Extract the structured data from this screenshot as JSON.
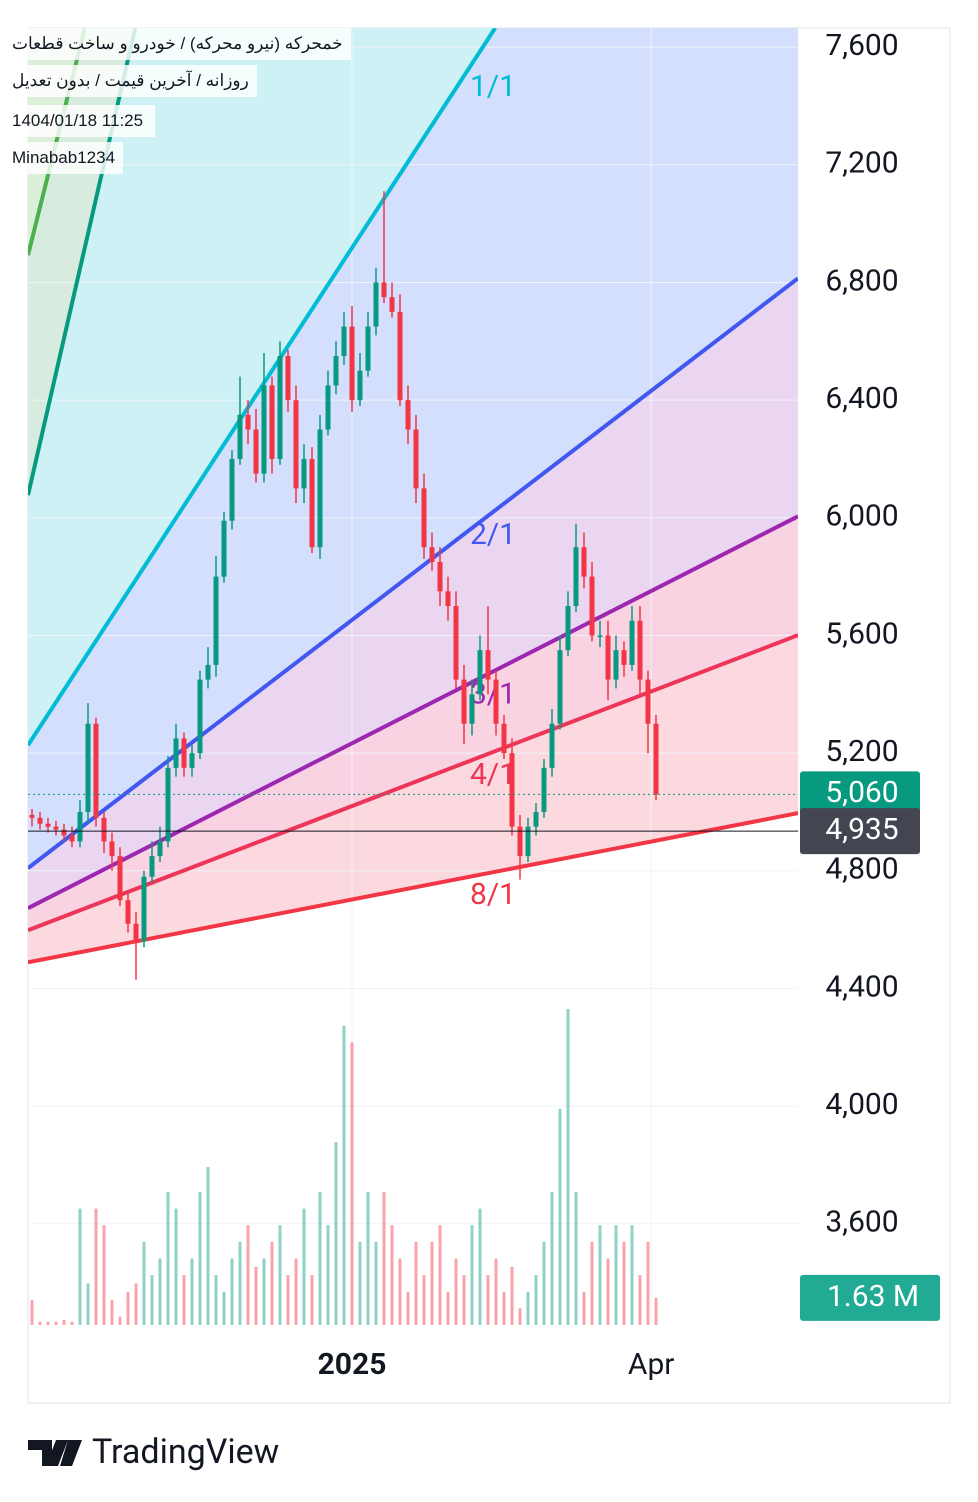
{
  "header": {
    "symbol": "خمحرکه (نیرو محرکه) / خودرو و ساخت قطعات",
    "interval": "روزانه / آخرین قیمت / بدون تعدیل",
    "datetime": "1404/01/18 11:25",
    "author": "Minabab1234"
  },
  "brand": "TradingView",
  "chart_data": {
    "type": "candlestick",
    "xlim": [
      -0.5,
      95.75
    ],
    "ylim": [
      3256,
      7665
    ],
    "yticks": [
      {
        "value": 3600,
        "label": "3,600"
      },
      {
        "value": 4000,
        "label": "4,000"
      },
      {
        "value": 4400,
        "label": "4,400"
      },
      {
        "value": 4800,
        "label": "4,800"
      },
      {
        "value": 5200,
        "label": "5,200"
      },
      {
        "value": 5600,
        "label": "5,600"
      },
      {
        "value": 6000,
        "label": "6,000"
      },
      {
        "value": 6400,
        "label": "6,400"
      },
      {
        "value": 6800,
        "label": "6,800"
      },
      {
        "value": 7200,
        "label": "7,200"
      },
      {
        "value": 7600,
        "label": "7,600"
      }
    ],
    "xticks": [
      {
        "value": 40,
        "label": "2025"
      },
      {
        "value": 77.4,
        "label": "Apr"
      }
    ],
    "grid": true,
    "up_color": "#089981",
    "down_color": "#f23645",
    "open": [
      4990,
      4980,
      4960,
      4950,
      4940,
      4920,
      4900,
      5000,
      5300,
      4980,
      4900,
      4850,
      4700,
      4620,
      4560,
      4780,
      4850,
      4900,
      5150,
      5250,
      5150,
      5200,
      5450,
      5500,
      5800,
      5990,
      6200,
      6350,
      6300,
      6150,
      6450,
      6200,
      6550,
      6400,
      6100,
      6200,
      5900,
      6300,
      6450,
      6550,
      6650,
      6400,
      6500,
      6650,
      6800,
      6750,
      6700,
      6400,
      6300,
      6100,
      5900,
      5850,
      5750,
      5700,
      5450,
      5300,
      5400,
      5550,
      5450,
      5300,
      5200,
      4950,
      4850,
      4950,
      5000,
      5150,
      5300,
      5550,
      5700,
      5900,
      5800,
      5600,
      5600,
      5450,
      5550,
      5500,
      5650,
      5450,
      5300
    ],
    "high": [
      5010,
      5000,
      4980,
      4970,
      4960,
      4950,
      5040,
      5370,
      5320,
      5000,
      4930,
      4880,
      4730,
      4660,
      4800,
      4900,
      4950,
      5190,
      5300,
      5270,
      5230,
      5480,
      5560,
      5870,
      6020,
      6230,
      6480,
      6400,
      6370,
      6560,
      6480,
      6600,
      6570,
      6450,
      6250,
      6240,
      6350,
      6500,
      6600,
      6700,
      6720,
      6560,
      6700,
      6850,
      7110,
      6800,
      6760,
      6450,
      6350,
      6150,
      5950,
      5900,
      5800,
      5750,
      5500,
      5450,
      5600,
      5700,
      5480,
      5330,
      5250,
      4990,
      4980,
      5030,
      5180,
      5350,
      5600,
      5750,
      5980,
      5950,
      5850,
      5650,
      5650,
      5600,
      5580,
      5700,
      5700,
      5480,
      5330
    ],
    "low": [
      4950,
      4940,
      4930,
      4920,
      4900,
      4880,
      4880,
      4960,
      4950,
      4860,
      4800,
      4680,
      4590,
      4430,
      4540,
      4760,
      4830,
      4880,
      5120,
      5120,
      5120,
      5180,
      5420,
      5460,
      5780,
      5960,
      6180,
      6250,
      6120,
      6120,
      6150,
      6180,
      6360,
      6050,
      6050,
      5880,
      5860,
      6280,
      6420,
      6520,
      6360,
      6380,
      6480,
      6620,
      6730,
      6680,
      6380,
      6250,
      6050,
      5860,
      5820,
      5700,
      5650,
      5420,
      5230,
      5260,
      5380,
      5400,
      5260,
      5180,
      4920,
      4770,
      4830,
      4920,
      4980,
      5120,
      5280,
      5530,
      5680,
      5760,
      5580,
      5560,
      5380,
      5420,
      5460,
      5480,
      5400,
      5200,
      5040
    ],
    "close": [
      4980,
      4960,
      4950,
      4940,
      4920,
      4900,
      5000,
      5300,
      4980,
      4900,
      4850,
      4700,
      4620,
      4560,
      4780,
      4850,
      4900,
      5150,
      5250,
      5150,
      5200,
      5450,
      5500,
      5800,
      5990,
      6200,
      6350,
      6300,
      6150,
      6450,
      6200,
      6550,
      6400,
      6100,
      6200,
      5900,
      6300,
      6450,
      6550,
      6650,
      6400,
      6500,
      6650,
      6800,
      6750,
      6700,
      6400,
      6300,
      6100,
      5900,
      5850,
      5750,
      5700,
      5450,
      5300,
      5400,
      5550,
      5450,
      5300,
      5200,
      4950,
      4850,
      4950,
      5000,
      5150,
      5300,
      5550,
      5700,
      5900,
      5800,
      5600,
      5600,
      5450,
      5550,
      5500,
      5650,
      5450,
      5300,
      5060
    ],
    "volume": [
      1.5,
      0.2,
      0.2,
      0.2,
      0.3,
      0.2,
      7,
      2.5,
      7,
      6,
      1.5,
      0.5,
      2,
      2.5,
      5,
      3,
      4,
      8,
      7,
      3,
      4,
      8,
      9.5,
      3,
      2,
      4,
      5,
      6,
      3.5,
      4,
      5,
      6,
      3,
      4,
      7,
      3,
      8,
      6,
      11,
      18,
      17,
      5,
      8,
      5,
      8,
      6,
      4,
      2,
      5,
      3,
      5,
      6,
      2,
      4,
      3,
      6,
      7,
      3,
      4,
      2,
      3.5,
      1,
      2,
      3,
      5,
      8,
      13,
      19,
      8,
      2,
      5,
      6,
      4,
      6,
      5,
      6,
      3,
      5,
      1.63
    ],
    "volume_lim": [
      0,
      78
    ],
    "volume_last_label": "1.63 M",
    "last_price": {
      "value": 5060,
      "label": "5,060"
    },
    "crosshair_price": {
      "value": 4935,
      "label": "4,935"
    },
    "fan": [
      {
        "label": "8/1",
        "color": "#f23645",
        "fill": "#fbd9df",
        "start": [
          -0.5,
          4489
        ],
        "end": [
          95.75,
          4996
        ]
      },
      {
        "label": "4/1",
        "color": "#ec3558",
        "fill": "#f9d3e2",
        "start": [
          -0.5,
          4598
        ],
        "end": [
          95.75,
          5601
        ]
      },
      {
        "label": "3/1",
        "color": "#9c27b0",
        "fill": "#ead6f1",
        "start": [
          -0.5,
          4673
        ],
        "end": [
          95.75,
          6005
        ]
      },
      {
        "label": "2/1",
        "color": "#4158f0",
        "fill": "#d4defd",
        "start": [
          -0.5,
          4809
        ],
        "end": [
          95.75,
          6814
        ]
      },
      {
        "label": "1/1",
        "color": "#00bcd4",
        "fill": "#cdf1f4",
        "start": [
          -0.5,
          5227
        ],
        "end": [
          57.9,
          7665
        ]
      },
      {
        "color": "#089981",
        "fill": "#d7ecdf",
        "start": [
          -0.5,
          6077
        ],
        "end": [
          12.9,
          7665
        ]
      },
      {
        "color": "#4caf50",
        "fill": "#dcefd9",
        "start": [
          -0.5,
          6893
        ],
        "end": [
          6.6,
          7665
        ]
      }
    ]
  }
}
